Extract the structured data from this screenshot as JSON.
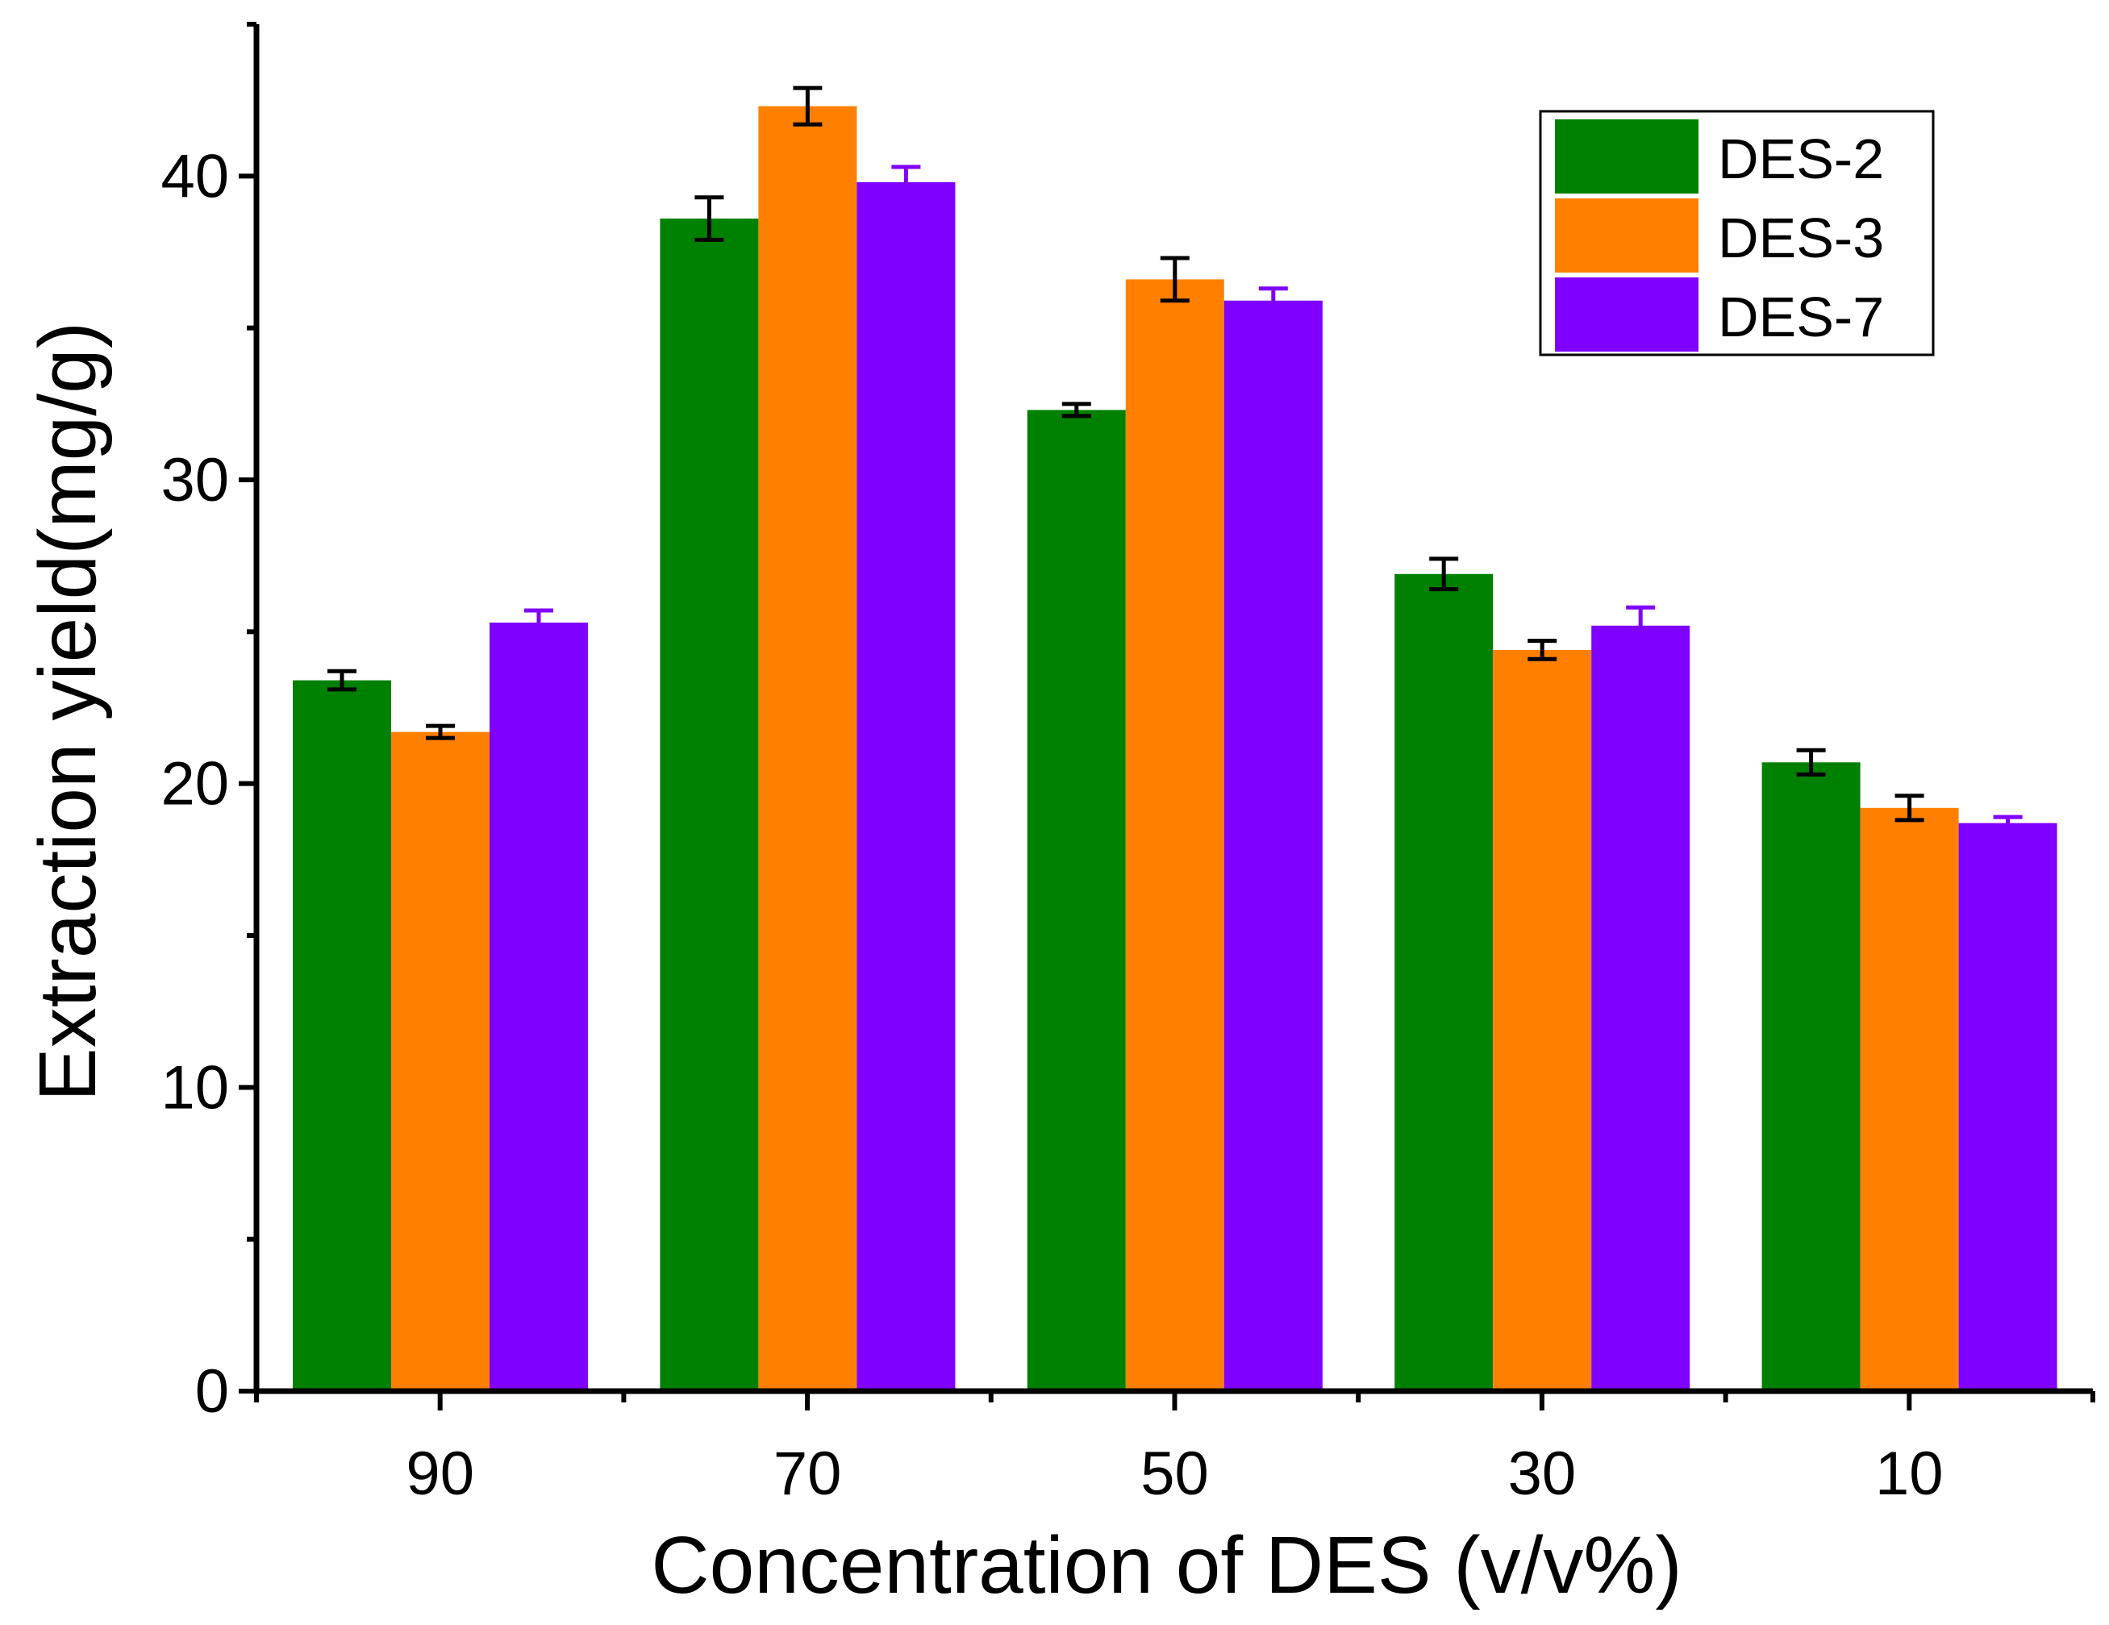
{
  "chart_data": {
    "type": "bar",
    "title": "",
    "xlabel": "Concentration of DES (v/v%)",
    "ylabel": "Extraction yield(mg/g)",
    "categories": [
      "90",
      "70",
      "50",
      "30",
      "10"
    ],
    "ylim": [
      0,
      45
    ],
    "yticks": [
      "0",
      "10",
      "20",
      "30",
      "40"
    ],
    "legend_position": "top-right",
    "series": [
      {
        "name": "DES-2",
        "color": "#008000",
        "values": [
          23.4,
          38.6,
          32.3,
          26.9,
          20.7
        ],
        "errors": [
          0.3,
          0.7,
          0.2,
          0.5,
          0.4
        ]
      },
      {
        "name": "DES-3",
        "color": "#ff8000",
        "values": [
          21.7,
          42.3,
          36.6,
          24.4,
          19.2
        ],
        "errors": [
          0.2,
          0.6,
          0.7,
          0.3,
          0.4
        ]
      },
      {
        "name": "DES-7",
        "color": "#8000ff",
        "values": [
          25.3,
          39.8,
          35.9,
          25.2,
          18.7
        ],
        "errors": [
          0.4,
          0.5,
          0.4,
          0.6,
          0.2
        ]
      }
    ]
  }
}
